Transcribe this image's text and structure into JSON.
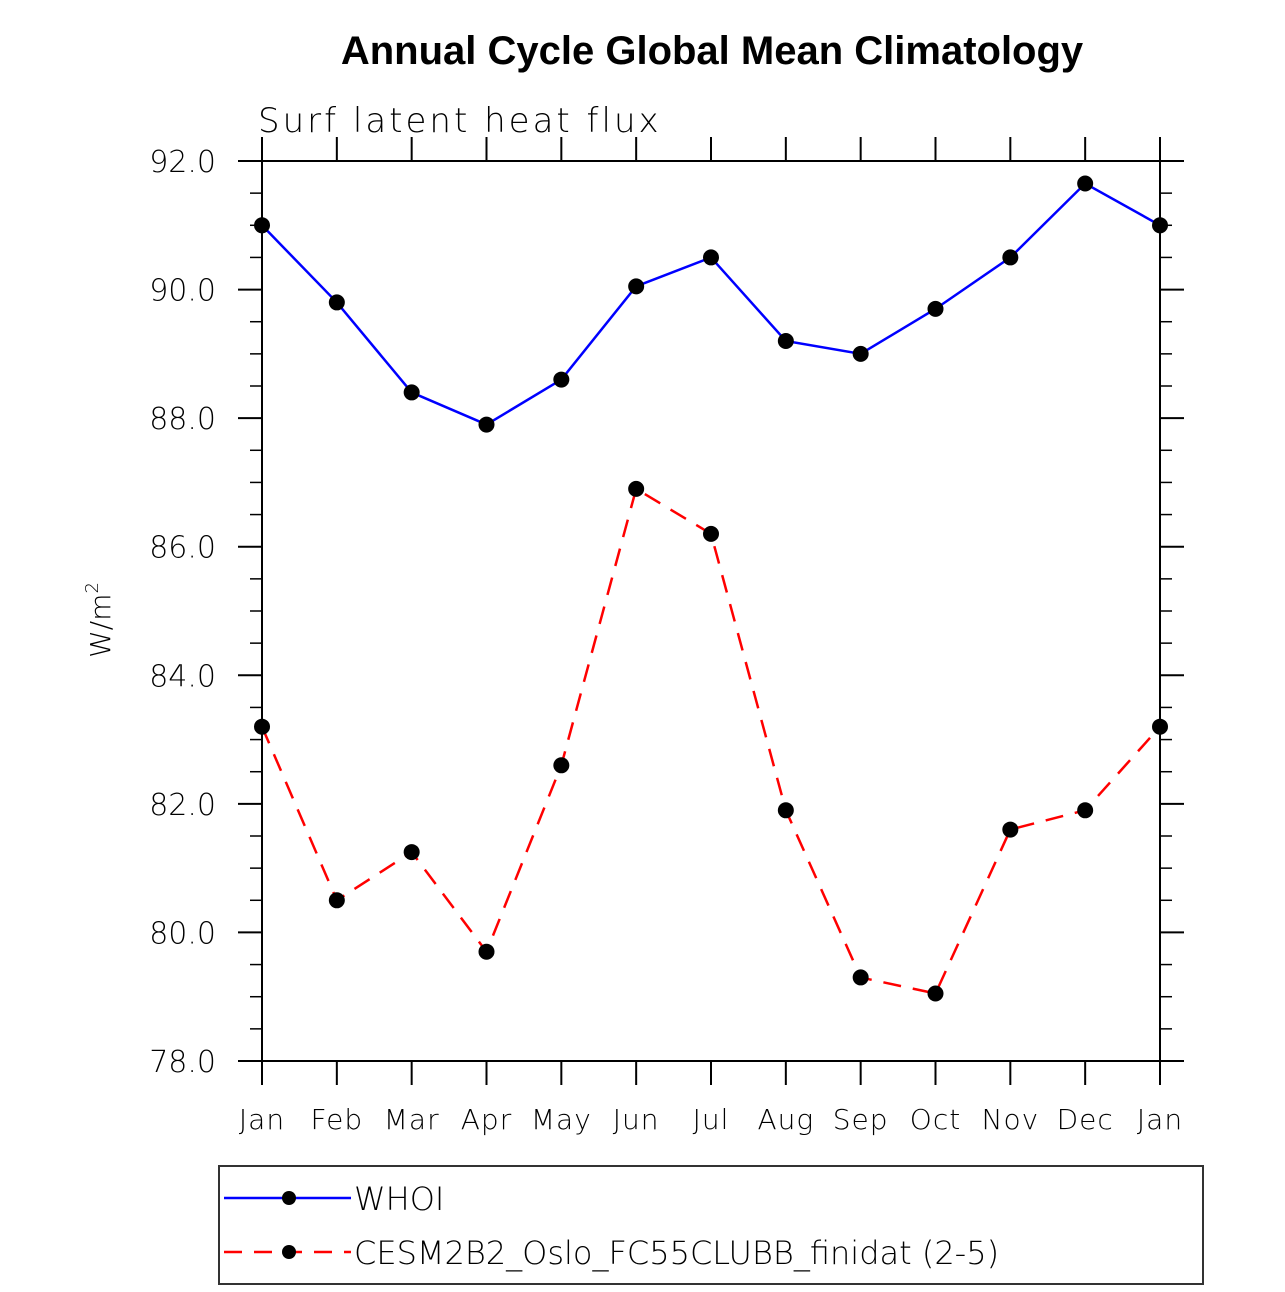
{
  "chart_data": {
    "type": "line",
    "title": "Annual Cycle Global Mean Climatology",
    "subtitle": "Surf latent heat flux",
    "xlabel": "",
    "ylabel": "W/m",
    "ylabel_superscript": "2",
    "categories": [
      "Jan",
      "Feb",
      "Mar",
      "Apr",
      "May",
      "Jun",
      "Jul",
      "Aug",
      "Sep",
      "Oct",
      "Nov",
      "Dec",
      "Jan"
    ],
    "ylim": [
      78.0,
      92.0
    ],
    "yticks": [
      "78.0",
      "80.0",
      "82.0",
      "84.0",
      "86.0",
      "88.0",
      "90.0",
      "92.0"
    ],
    "ytick_values": [
      78,
      80,
      82,
      84,
      86,
      88,
      90,
      92
    ],
    "yminor_step": 0.5,
    "grid": false,
    "legend_placement": "bottom",
    "series": [
      {
        "name": "WHOI",
        "color": "#0000ff",
        "dash": "solid",
        "marker": "filled-circle",
        "values": [
          91.0,
          89.8,
          88.4,
          87.9,
          88.6,
          90.05,
          90.5,
          89.2,
          89.0,
          89.7,
          90.5,
          91.65,
          91.0
        ]
      },
      {
        "name": "CESM2B2_Oslo_FC55CLUBB_finidat (2-5)",
        "color": "#ff0000",
        "dash": "dashed",
        "marker": "filled-circle",
        "values": [
          83.2,
          80.5,
          81.25,
          79.7,
          82.6,
          86.9,
          86.2,
          81.9,
          79.3,
          79.05,
          81.6,
          81.9,
          83.2
        ]
      }
    ]
  }
}
